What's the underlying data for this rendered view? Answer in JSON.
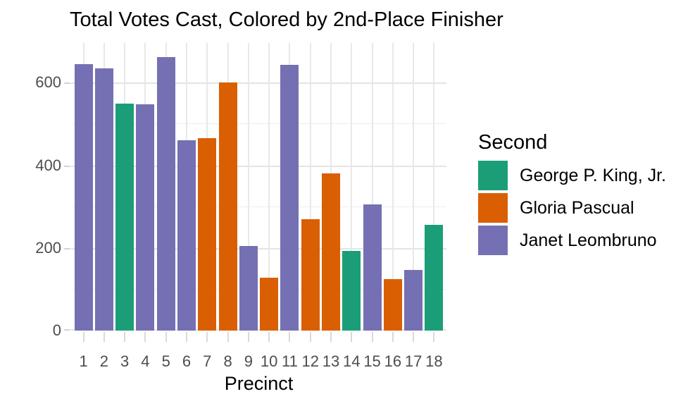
{
  "chart_data": {
    "type": "bar",
    "title": "Total Votes Cast, Colored by 2nd-Place Finisher",
    "xlabel": "Precinct",
    "ylabel": "",
    "categories": [
      "1",
      "2",
      "3",
      "4",
      "5",
      "6",
      "7",
      "8",
      "9",
      "10",
      "11",
      "12",
      "13",
      "14",
      "15",
      "16",
      "17",
      "18"
    ],
    "values": [
      645,
      634,
      550,
      548,
      662,
      461,
      465,
      600,
      205,
      128,
      643,
      270,
      380,
      192,
      306,
      124,
      146,
      256
    ],
    "groups": [
      "Janet Leombruno",
      "Janet Leombruno",
      "George P. King, Jr.",
      "Janet Leombruno",
      "Janet Leombruno",
      "Janet Leombruno",
      "Gloria Pascual",
      "Gloria Pascual",
      "Janet Leombruno",
      "Gloria Pascual",
      "Janet Leombruno",
      "Gloria Pascual",
      "Gloria Pascual",
      "George P. King, Jr.",
      "Janet Leombruno",
      "Gloria Pascual",
      "Janet Leombruno",
      "George P. King, Jr."
    ],
    "ylim": [
      0,
      696
    ],
    "yticks": [
      0,
      200,
      400,
      600
    ],
    "yticks_minor": [
      100,
      300,
      500
    ],
    "grid": true,
    "legend": {
      "title": "Second",
      "position": "right",
      "entries": [
        {
          "label": "George P. King, Jr.",
          "color": "#1B9E77"
        },
        {
          "label": "Gloria Pascual",
          "color": "#D95F02"
        },
        {
          "label": "Janet Leombruno",
          "color": "#7570B3"
        }
      ]
    }
  }
}
